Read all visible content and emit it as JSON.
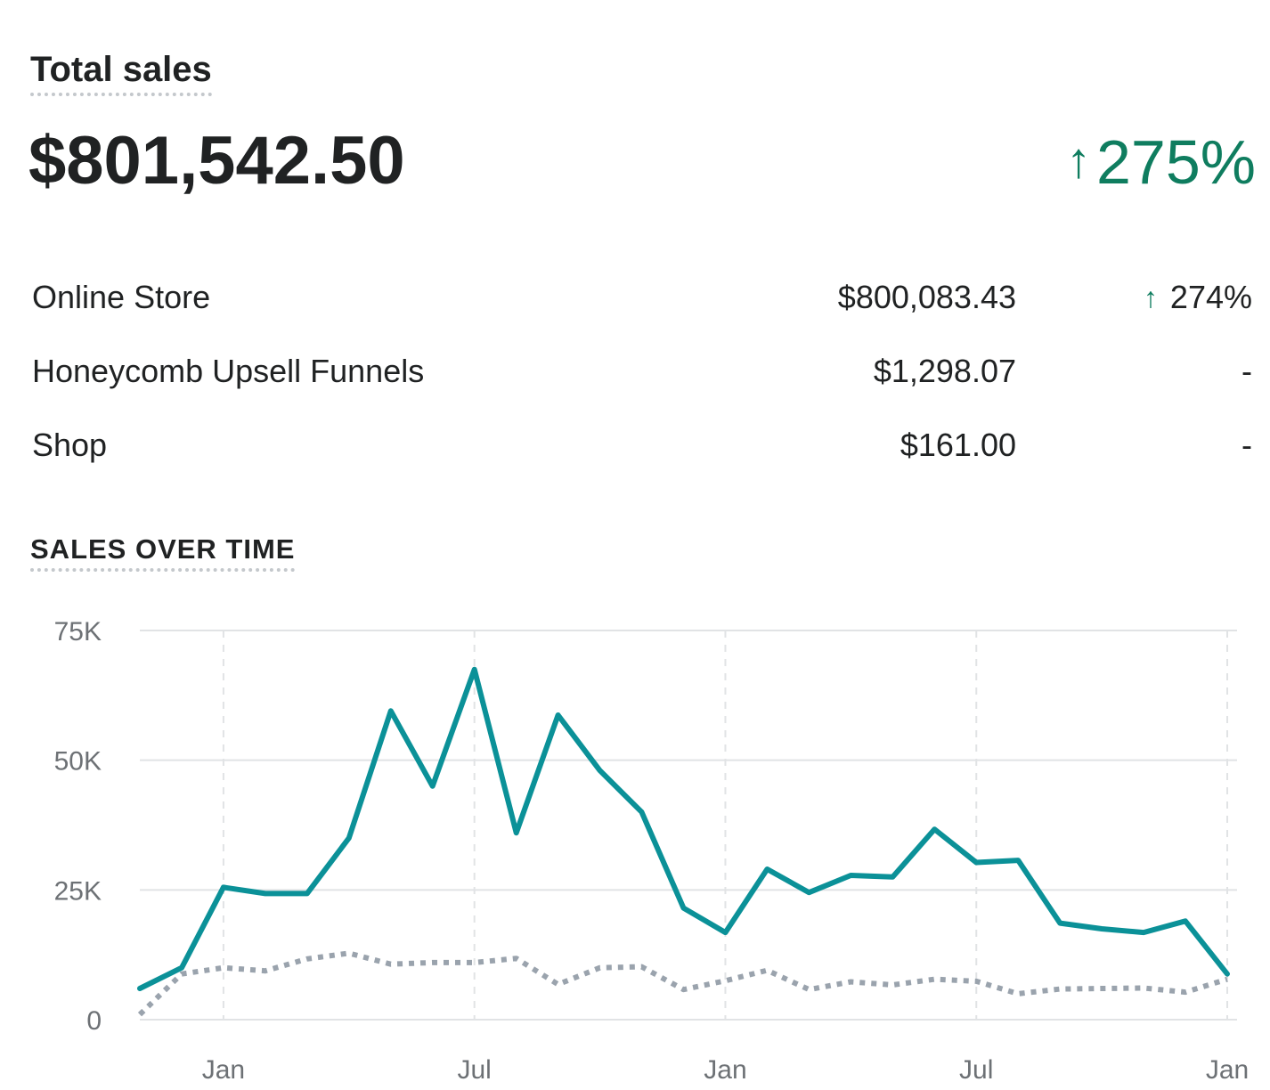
{
  "card": {
    "title": "Total sales",
    "total_value": "$801,542.50",
    "total_change_arrow": "↑",
    "total_change": "275%"
  },
  "breakdown": [
    {
      "name": "Online Store",
      "amount": "$800,083.43",
      "change_arrow": "↑",
      "change": "274%"
    },
    {
      "name": "Honeycomb Upsell Funnels",
      "amount": "$1,298.07",
      "change_arrow": "",
      "change": "-"
    },
    {
      "name": "Shop",
      "amount": "$161.00",
      "change_arrow": "",
      "change": "-"
    }
  ],
  "section": {
    "title": "SALES OVER TIME"
  },
  "colors": {
    "positive": "#0f7d5f",
    "current_series": "#0b9198",
    "previous_series": "#9aa3ad",
    "grid": "#e1e3e5"
  },
  "icons": {
    "increase": "arrow-up-icon"
  },
  "chart_data": {
    "type": "line",
    "ylim": [
      0,
      75000
    ],
    "y_ticks": [
      {
        "value": 0,
        "label": "0"
      },
      {
        "value": 25000,
        "label": "25K"
      },
      {
        "value": 50000,
        "label": "50K"
      },
      {
        "value": 75000,
        "label": "75K"
      }
    ],
    "x_ticks": [
      {
        "index": 2,
        "label": "Jan"
      },
      {
        "index": 8,
        "label": "Jul"
      },
      {
        "index": 14,
        "label": "Jan"
      },
      {
        "index": 20,
        "label": "Jul"
      },
      {
        "index": 26,
        "label": "Jan"
      }
    ],
    "x_count": 27,
    "grid": true,
    "series": [
      {
        "style": "solid",
        "values": [
          6000,
          10000,
          25500,
          24300,
          24300,
          35000,
          59500,
          45000,
          67500,
          36000,
          58700,
          48000,
          40000,
          21500,
          16800,
          29000,
          24500,
          27800,
          27500,
          36700,
          30300,
          30700,
          18600,
          17500,
          16800,
          19000,
          8800
        ]
      },
      {
        "style": "dotted",
        "values": [
          1000,
          8800,
          10000,
          9400,
          11700,
          12800,
          10700,
          11000,
          11000,
          11800,
          6800,
          10000,
          10200,
          5800,
          7500,
          9500,
          5800,
          7300,
          6700,
          7800,
          7400,
          5000,
          5900,
          6000,
          6100,
          5300,
          7800
        ]
      }
    ]
  }
}
